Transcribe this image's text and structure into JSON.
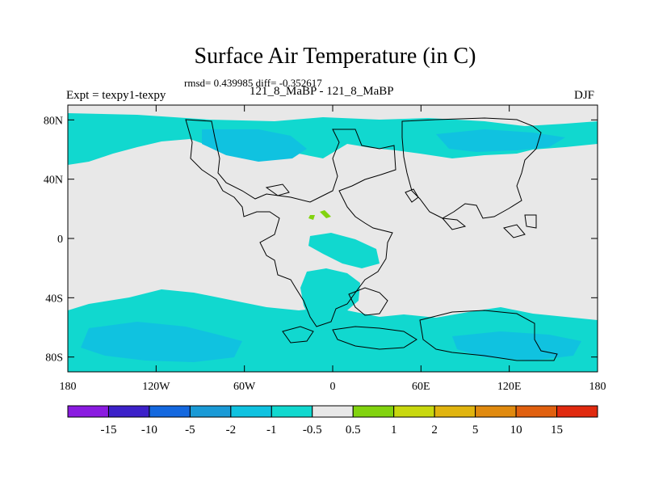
{
  "title": "Surface Air Temperature (in C)",
  "stats": "rmsd= 0.439985 diff= -0.352617",
  "left_label": "Expt = texpy1-texpy",
  "center_label": "121_8_MaBP - 121_8_MaBP",
  "right_label": "DJF",
  "map": {
    "lon_range": [
      -180,
      180
    ],
    "lat_range": [
      -90,
      90
    ],
    "lon_ticks": [
      {
        "value": -180,
        "label": "180"
      },
      {
        "value": -120,
        "label": "120W"
      },
      {
        "value": -60,
        "label": "60W"
      },
      {
        "value": 0,
        "label": "0"
      },
      {
        "value": 60,
        "label": "60E"
      },
      {
        "value": 120,
        "label": "120E"
      },
      {
        "value": 180,
        "label": "180"
      }
    ],
    "lat_ticks": [
      {
        "value": 80,
        "label": "80N"
      },
      {
        "value": 40,
        "label": "40N"
      },
      {
        "value": 0,
        "label": "0"
      },
      {
        "value": -40,
        "label": "40S"
      },
      {
        "value": -80,
        "label": "80S"
      }
    ]
  },
  "colorbar": {
    "colors": [
      "#8a1be0",
      "#3c21c9",
      "#1468df",
      "#1a9ad6",
      "#10c2e0",
      "#11d8cf",
      "#e8e8e8",
      "#82d30f",
      "#c8d80f",
      "#e0b40f",
      "#e08a0f",
      "#e0600f",
      "#e02a0f"
    ],
    "labels": [
      "-15",
      "-10",
      "-5",
      "-2",
      "-1",
      "-0.5",
      "0.5",
      "1",
      "2",
      "5",
      "10",
      "15"
    ]
  }
}
